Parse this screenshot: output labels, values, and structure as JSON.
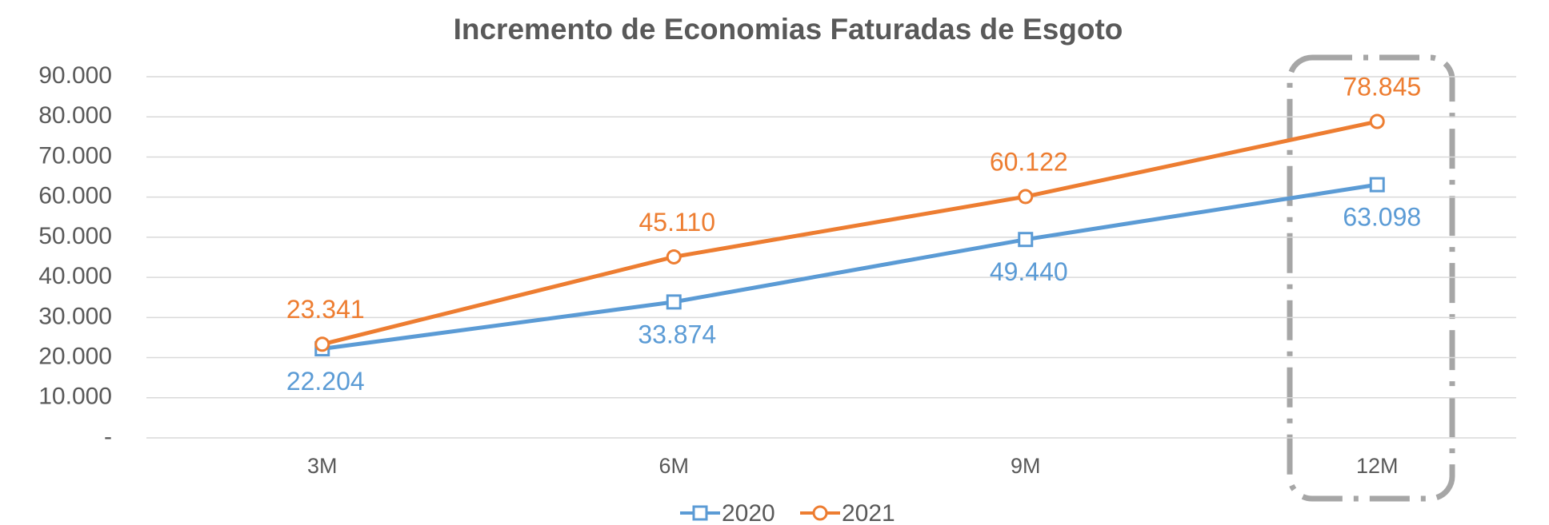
{
  "chart_data": {
    "type": "line",
    "title": "Incremento de Economias Faturadas de Esgoto",
    "categories": [
      "3M",
      "6M",
      "9M",
      "12M"
    ],
    "series": [
      {
        "name": "2020",
        "color": "#5b9bd5",
        "marker": "square",
        "values": [
          22204,
          33874,
          49440,
          63098
        ],
        "value_labels": [
          "22.204",
          "33.874",
          "49.440",
          "63.098"
        ]
      },
      {
        "name": "2021",
        "color": "#ed7d31",
        "marker": "circle",
        "values": [
          23341,
          45110,
          60122,
          78845
        ],
        "value_labels": [
          "23.341",
          "45.110",
          "60.122",
          "78.845"
        ]
      }
    ],
    "ylim": [
      0,
      90000
    ],
    "yticks": [
      {
        "value": 0,
        "label": "-"
      },
      {
        "value": 10000,
        "label": "10.000"
      },
      {
        "value": 20000,
        "label": "20.000"
      },
      {
        "value": 30000,
        "label": "30.000"
      },
      {
        "value": 40000,
        "label": "40.000"
      },
      {
        "value": 50000,
        "label": "50.000"
      },
      {
        "value": 60000,
        "label": "60.000"
      },
      {
        "value": 70000,
        "label": "70.000"
      },
      {
        "value": 80000,
        "label": "80.000"
      },
      {
        "value": 90000,
        "label": "90.000"
      }
    ],
    "grid": true,
    "legend": "bottom"
  }
}
